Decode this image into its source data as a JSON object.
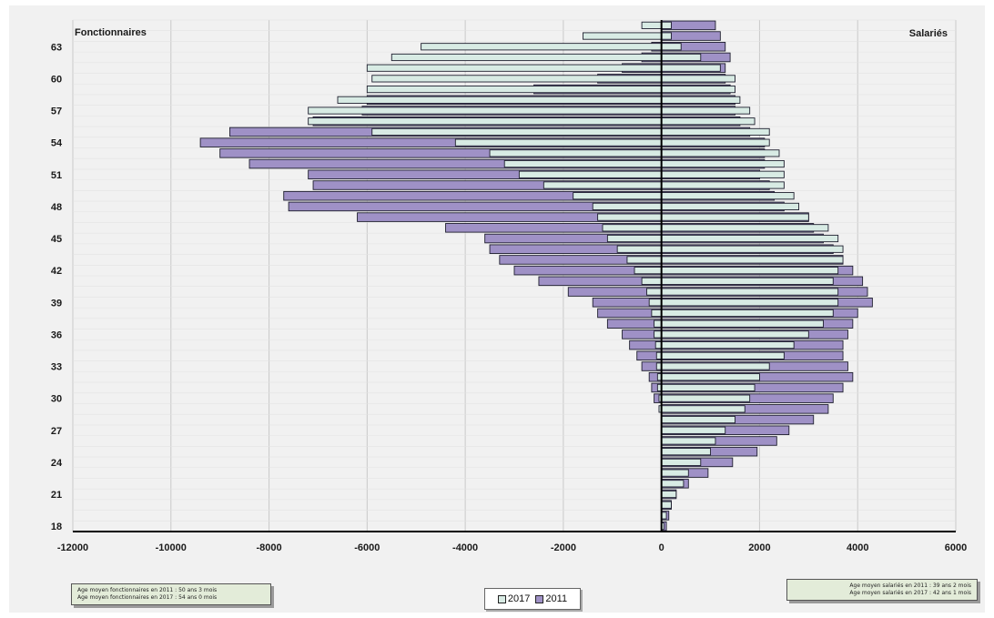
{
  "chart_data": {
    "type": "bar",
    "orientation": "horizontal",
    "left_title": "Fonctionnaires",
    "right_title": "Salariés",
    "xlim": [
      -12000,
      6000
    ],
    "x_ticks": [
      -12000,
      -10000,
      -8000,
      -6000,
      -4000,
      -2000,
      0,
      2000,
      4000,
      6000
    ],
    "y_ticks": [
      18,
      21,
      24,
      27,
      30,
      33,
      36,
      39,
      42,
      45,
      48,
      51,
      54,
      57,
      60,
      63
    ],
    "grid": "vertical",
    "legend_position": "bottom-center",
    "ages": [
      18,
      19,
      20,
      21,
      22,
      23,
      24,
      25,
      26,
      27,
      28,
      29,
      30,
      31,
      32,
      33,
      34,
      35,
      36,
      37,
      38,
      39,
      40,
      41,
      42,
      43,
      44,
      45,
      46,
      47,
      48,
      49,
      50,
      51,
      52,
      53,
      54,
      55,
      56,
      57,
      58,
      59,
      60,
      61,
      62,
      63,
      64,
      65
    ],
    "series": [
      {
        "name": "2017",
        "color": "#d8ebe4",
        "fonctionnaires": [
          0,
          0,
          0,
          0,
          0,
          0,
          0,
          0,
          0,
          0,
          0,
          -50,
          -50,
          -80,
          -80,
          -100,
          -100,
          -120,
          -150,
          -150,
          -200,
          -250,
          -300,
          -400,
          -550,
          -700,
          -900,
          -1100,
          -1200,
          -1300,
          -1400,
          -1800,
          -2400,
          -2900,
          -3200,
          -3500,
          -4200,
          -5900,
          -7200,
          -7200,
          -6600,
          -6000,
          -5900,
          -6000,
          -5500,
          -4900,
          -1600,
          -400
        ],
        "salaries": [
          50,
          100,
          200,
          300,
          450,
          550,
          800,
          1000,
          1100,
          1300,
          1500,
          1700,
          1800,
          1900,
          2000,
          2200,
          2500,
          2700,
          3000,
          3300,
          3500,
          3600,
          3600,
          3500,
          3600,
          3700,
          3700,
          3600,
          3400,
          3000,
          2800,
          2700,
          2500,
          2500,
          2500,
          2400,
          2200,
          2200,
          1900,
          1800,
          1600,
          1500,
          1500,
          1200,
          800,
          400,
          200,
          200
        ]
      },
      {
        "name": "2011",
        "color": "#9f91c6",
        "fonctionnaires": [
          0,
          0,
          0,
          0,
          0,
          0,
          0,
          0,
          0,
          0,
          0,
          0,
          -150,
          -200,
          -250,
          -400,
          -500,
          -650,
          -800,
          -1100,
          -1300,
          -1400,
          -1900,
          -2500,
          -3000,
          -3300,
          -3500,
          -3600,
          -4400,
          -6200,
          -7600,
          -7700,
          -7100,
          -7200,
          -8400,
          -9000,
          -9400,
          -8800,
          -7100,
          -6100,
          -6000,
          -2600,
          -1300,
          -800,
          -400,
          -200,
          0,
          0
        ],
        "salaries": [
          100,
          150,
          200,
          300,
          550,
          950,
          1450,
          1950,
          2350,
          2600,
          3100,
          3400,
          3500,
          3700,
          3900,
          3800,
          3700,
          3700,
          3800,
          3900,
          4000,
          4300,
          4200,
          4100,
          3900,
          3700,
          3500,
          3300,
          3100,
          3000,
          2500,
          2300,
          2200,
          2000,
          2100,
          2100,
          2100,
          1800,
          1600,
          1500,
          1500,
          1400,
          1300,
          1300,
          1400,
          1300,
          1200,
          1100
        ]
      }
    ]
  },
  "notes": {
    "left_line1": "Age moyen fonctionnaires en 2011 : 50 ans 3 mois",
    "left_line2": "Age moyen fonctionnaires en 2017 : 54 ans 0 mois",
    "right_line1": "Age moyen salariés en 2011 : 39 ans 2 mois",
    "right_line2": "Age moyen salariés en 2017 : 42 ans 1 mois"
  },
  "legend": {
    "item1": "2017",
    "item2": "2011"
  }
}
